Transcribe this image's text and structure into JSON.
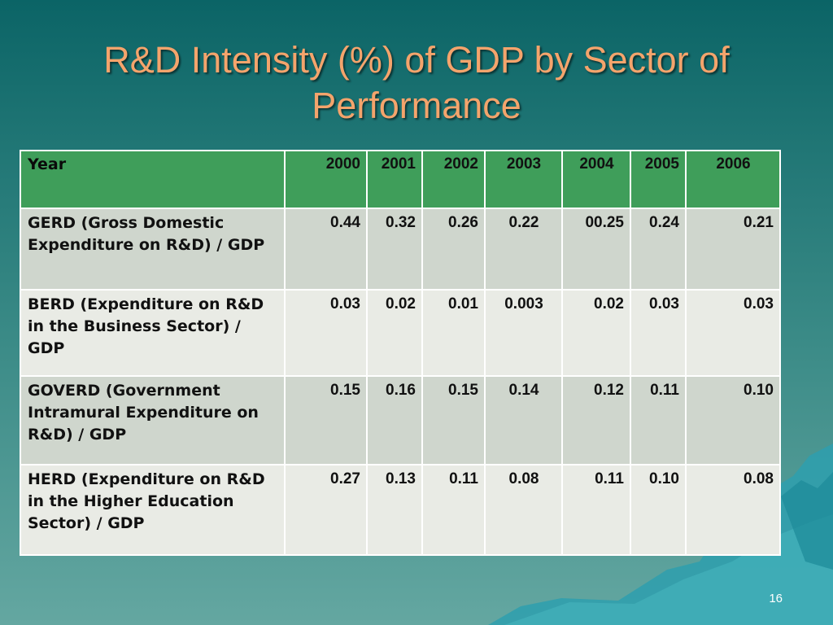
{
  "slide": {
    "title": "R&D Intensity (%) of GDP by Sector of Performance",
    "page_number": "16"
  },
  "table": {
    "header_label": "Year",
    "years": [
      "2000",
      "2001",
      "2002",
      "2003",
      "2004",
      "2005",
      "2006"
    ],
    "rows": [
      {
        "label": "GERD (Gross Domestic Expenditure on R&D) / GDP",
        "values": [
          "0.44",
          "0.32",
          "0.26",
          "0.22",
          "00.25",
          "0.24",
          "0.21"
        ]
      },
      {
        "label": "BERD (Expenditure on R&D in the Business Sector) / GDP",
        "values": [
          "0.03",
          "0.02",
          "0.01",
          "0.003",
          "0.02",
          "0.03",
          "0.03"
        ]
      },
      {
        "label": "GOVERD (Government Intramural Expenditure on R&D) / GDP",
        "values": [
          "0.15",
          "0.16",
          "0.15",
          "0.14",
          "0.12",
          "0.11",
          "0.10"
        ]
      },
      {
        "label": "HERD (Expenditure on R&D in the Higher Education  Sector) / GDP",
        "values": [
          "0.27",
          "0.13",
          "0.11",
          "0.08",
          "0.11",
          "0.10",
          "0.08"
        ]
      }
    ]
  },
  "colors": {
    "title": "#f4a46c",
    "header_bg": "#3f9e5a",
    "row_dark_bg": "#cfd6cd",
    "row_light_bg": "#e9ebe5"
  }
}
